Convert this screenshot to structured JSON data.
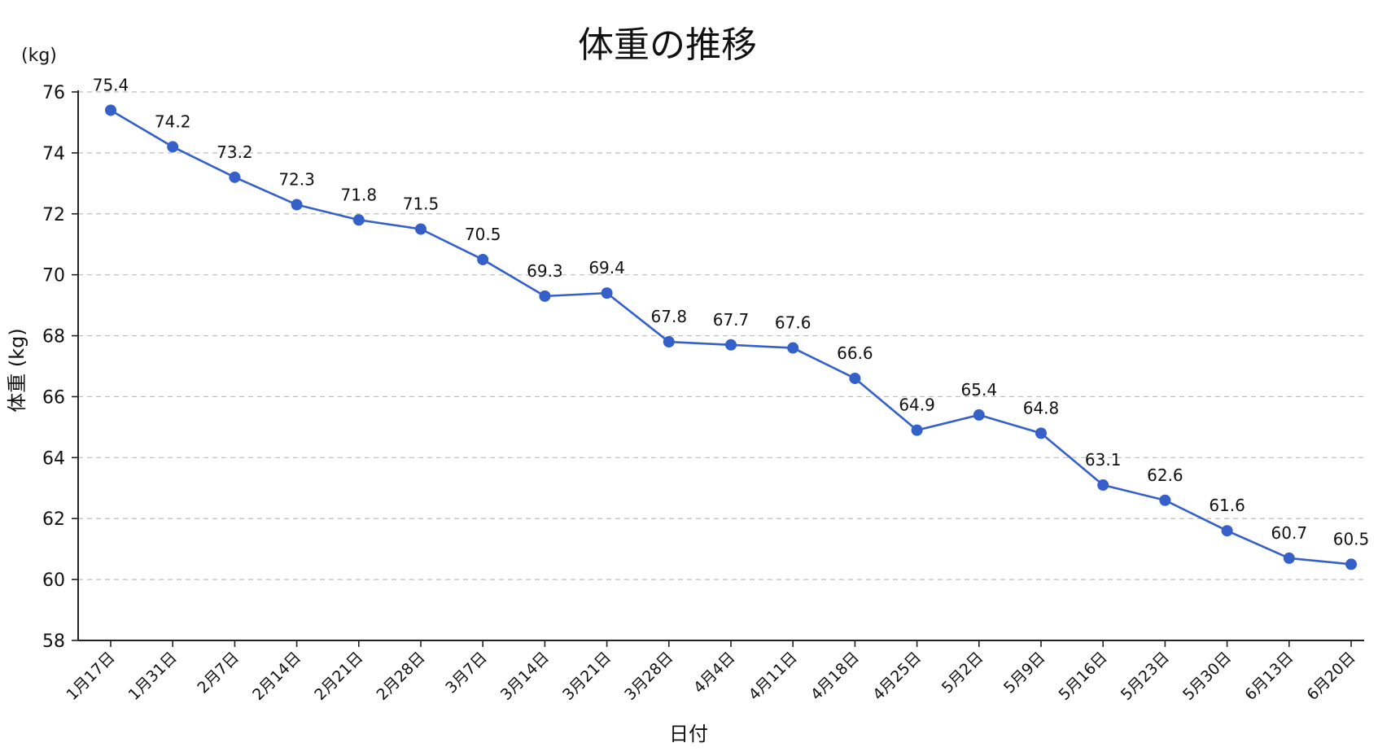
{
  "chart_data": {
    "type": "line",
    "title": "体重の推移",
    "unit_label": "(kg)",
    "xlabel": "日付",
    "ylabel": "体重 (kg)",
    "ylim": [
      58,
      76
    ],
    "yticks": [
      58,
      60,
      62,
      64,
      66,
      68,
      70,
      72,
      74,
      76
    ],
    "grid": true,
    "categories": [
      "1月17日",
      "1月31日",
      "2月7日",
      "2月14日",
      "2月21日",
      "2月28日",
      "3月7日",
      "3月14日",
      "3月21日",
      "3月28日",
      "4月4日",
      "4月11日",
      "4月18日",
      "4月25日",
      "5月2日",
      "5月9日",
      "5月16日",
      "5月23日",
      "5月30日",
      "6月13日",
      "6月20日"
    ],
    "series": [
      {
        "values": [
          75.4,
          74.2,
          73.2,
          72.3,
          71.8,
          71.5,
          70.5,
          69.3,
          69.4,
          67.8,
          67.7,
          67.6,
          66.6,
          64.9,
          65.4,
          64.8,
          63.1,
          62.6,
          61.6,
          60.7,
          60.5
        ],
        "labels": [
          "75.4",
          "74.2",
          "73.2",
          "72.3",
          "71.8",
          "71.5",
          "70.5",
          "69.3",
          "69.4",
          "67.8",
          "67.7",
          "67.6",
          "66.6",
          "64.9",
          "65.4",
          "64.8",
          "63.1",
          "62.6",
          "61.6",
          "60.7",
          "60.5"
        ],
        "color": "#3560c9"
      }
    ]
  }
}
